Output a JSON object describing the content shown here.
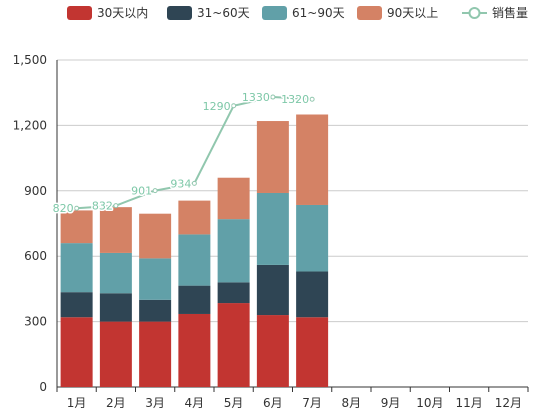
{
  "chart_data": {
    "type": "bar",
    "stacked": true,
    "categories": [
      "1月",
      "2月",
      "3月",
      "4月",
      "5月",
      "6月",
      "7月",
      "8月",
      "9月",
      "10月",
      "11月",
      "12月"
    ],
    "series": [
      {
        "name": "30天以内",
        "color": "#c23531",
        "values": [
          320,
          300,
          300,
          335,
          385,
          330,
          320,
          null,
          null,
          null,
          null,
          null
        ]
      },
      {
        "name": "31~60天",
        "color": "#2f4554",
        "values": [
          115,
          130,
          100,
          130,
          95,
          230,
          210,
          null,
          null,
          null,
          null,
          null
        ]
      },
      {
        "name": "61~90天",
        "color": "#61a0a8",
        "values": [
          225,
          185,
          190,
          235,
          290,
          330,
          305,
          null,
          null,
          null,
          null,
          null
        ]
      },
      {
        "name": "90天以上",
        "color": "#d48265",
        "values": [
          150,
          210,
          205,
          155,
          190,
          330,
          415,
          null,
          null,
          null,
          null,
          null
        ]
      }
    ],
    "line_series": {
      "name": "销售量",
      "color": "#91c7ae",
      "values": [
        820,
        832,
        901,
        934,
        1290,
        1330,
        1320,
        null,
        null,
        null,
        null,
        null
      ]
    },
    "yaxis": {
      "min": 0,
      "max": 1500,
      "ticks": [
        0,
        300,
        600,
        900,
        1200,
        1500
      ],
      "tick_labels": [
        "0",
        "300",
        "600",
        "900",
        "1,200",
        "1,500"
      ]
    },
    "line_labels": [
      "820",
      "832",
      "901",
      "934",
      "1290",
      "1330",
      "1320"
    ],
    "grid": true,
    "legend_position": "top"
  }
}
